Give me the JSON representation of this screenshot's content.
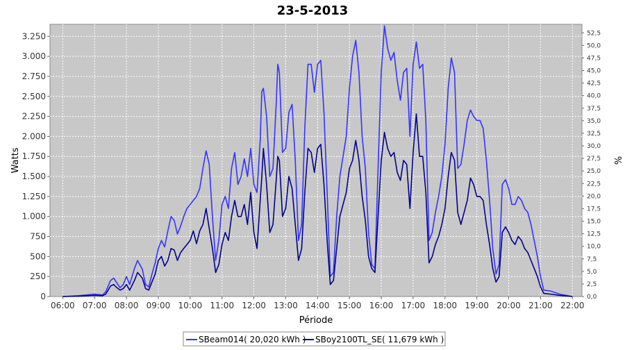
{
  "chart_data": {
    "type": "line",
    "title": "23-5-2013",
    "xlabel": "Période",
    "ylabel": "Watts",
    "y2label": "%",
    "x_range_hours": [
      5.6,
      22.3
    ],
    "ylim": [
      0,
      3400
    ],
    "y2lim": [
      0,
      54.2
    ],
    "grid": true,
    "legend_position": "bottom",
    "x_tick_labels": [
      "06:00",
      "07:00",
      "08:00",
      "09:00",
      "10:00",
      "11:00",
      "12:00",
      "13:00",
      "14:00",
      "15:00",
      "16:00",
      "17:00",
      "18:00",
      "19:00",
      "20:00",
      "21:00",
      "22:00"
    ],
    "y_tick_labels": [
      "0",
      "250",
      "500",
      "750",
      "1.000",
      "1.250",
      "1.500",
      "1.750",
      "2.000",
      "2.250",
      "2.500",
      "2.750",
      "3.000",
      "3.250"
    ],
    "y_tick_values": [
      0,
      250,
      500,
      750,
      1000,
      1250,
      1500,
      1750,
      2000,
      2250,
      2500,
      2750,
      3000,
      3250
    ],
    "y2_tick_labels": [
      "0,0",
      "2,5",
      "5,0",
      "7,5",
      "10,0",
      "12,5",
      "15,0",
      "17,5",
      "20,0",
      "22,5",
      "25,0",
      "27,5",
      "30,0",
      "32,5",
      "35,0",
      "37,5",
      "40,0",
      "42,5",
      "45,0",
      "47,5",
      "50,0",
      "52,5"
    ],
    "y2_tick_values": [
      0,
      2.5,
      5,
      7.5,
      10,
      12.5,
      15,
      17.5,
      20,
      22.5,
      25,
      27.5,
      30,
      32.5,
      35,
      37.5,
      40,
      42.5,
      45,
      47.5,
      50,
      52.5
    ],
    "series": [
      {
        "name": "SBeam014( 20,020 kWh )",
        "color": "#3333ff",
        "points": [
          [
            6.0,
            0
          ],
          [
            6.5,
            10
          ],
          [
            7.0,
            30
          ],
          [
            7.25,
            20
          ],
          [
            7.35,
            60
          ],
          [
            7.5,
            200
          ],
          [
            7.6,
            230
          ],
          [
            7.7,
            170
          ],
          [
            7.8,
            110
          ],
          [
            7.9,
            150
          ],
          [
            8.0,
            250
          ],
          [
            8.1,
            150
          ],
          [
            8.25,
            350
          ],
          [
            8.35,
            450
          ],
          [
            8.5,
            340
          ],
          [
            8.6,
            150
          ],
          [
            8.7,
            120
          ],
          [
            8.8,
            280
          ],
          [
            8.9,
            420
          ],
          [
            9.0,
            600
          ],
          [
            9.1,
            700
          ],
          [
            9.2,
            620
          ],
          [
            9.3,
            820
          ],
          [
            9.4,
            1000
          ],
          [
            9.5,
            950
          ],
          [
            9.6,
            780
          ],
          [
            9.7,
            880
          ],
          [
            9.8,
            1000
          ],
          [
            9.9,
            1100
          ],
          [
            10.0,
            1150
          ],
          [
            10.1,
            1200
          ],
          [
            10.2,
            1250
          ],
          [
            10.3,
            1350
          ],
          [
            10.4,
            1600
          ],
          [
            10.5,
            1820
          ],
          [
            10.6,
            1650
          ],
          [
            10.7,
            1000
          ],
          [
            10.8,
            450
          ],
          [
            10.9,
            700
          ],
          [
            11.0,
            1150
          ],
          [
            11.1,
            1250
          ],
          [
            11.2,
            1100
          ],
          [
            11.3,
            1600
          ],
          [
            11.4,
            1800
          ],
          [
            11.5,
            1400
          ],
          [
            11.6,
            1500
          ],
          [
            11.7,
            1720
          ],
          [
            11.8,
            1500
          ],
          [
            11.9,
            1850
          ],
          [
            12.0,
            1400
          ],
          [
            12.1,
            1300
          ],
          [
            12.2,
            1950
          ],
          [
            12.25,
            2560
          ],
          [
            12.3,
            2600
          ],
          [
            12.4,
            2250
          ],
          [
            12.5,
            1500
          ],
          [
            12.6,
            1600
          ],
          [
            12.7,
            2400
          ],
          [
            12.75,
            2900
          ],
          [
            12.8,
            2800
          ],
          [
            12.9,
            1800
          ],
          [
            13.0,
            1850
          ],
          [
            13.1,
            2300
          ],
          [
            13.2,
            2400
          ],
          [
            13.3,
            1700
          ],
          [
            13.4,
            700
          ],
          [
            13.5,
            900
          ],
          [
            13.6,
            2100
          ],
          [
            13.7,
            2900
          ],
          [
            13.8,
            2900
          ],
          [
            13.9,
            2550
          ],
          [
            14.0,
            2900
          ],
          [
            14.1,
            2950
          ],
          [
            14.2,
            2300
          ],
          [
            14.3,
            1300
          ],
          [
            14.4,
            250
          ],
          [
            14.5,
            300
          ],
          [
            14.6,
            1000
          ],
          [
            14.7,
            1500
          ],
          [
            14.8,
            1750
          ],
          [
            14.9,
            2000
          ],
          [
            15.0,
            2600
          ],
          [
            15.1,
            3000
          ],
          [
            15.2,
            3200
          ],
          [
            15.3,
            2800
          ],
          [
            15.4,
            2000
          ],
          [
            15.5,
            1600
          ],
          [
            15.6,
            800
          ],
          [
            15.7,
            400
          ],
          [
            15.8,
            350
          ],
          [
            15.9,
            1600
          ],
          [
            16.0,
            2800
          ],
          [
            16.1,
            3380
          ],
          [
            16.2,
            3100
          ],
          [
            16.3,
            2950
          ],
          [
            16.4,
            3050
          ],
          [
            16.5,
            2700
          ],
          [
            16.6,
            2450
          ],
          [
            16.7,
            2800
          ],
          [
            16.8,
            2850
          ],
          [
            16.9,
            2000
          ],
          [
            17.0,
            2900
          ],
          [
            17.1,
            3180
          ],
          [
            17.2,
            2850
          ],
          [
            17.3,
            2900
          ],
          [
            17.4,
            2200
          ],
          [
            17.5,
            700
          ],
          [
            17.6,
            800
          ],
          [
            17.7,
            1050
          ],
          [
            17.8,
            1250
          ],
          [
            17.9,
            1500
          ],
          [
            18.0,
            1900
          ],
          [
            18.1,
            2600
          ],
          [
            18.2,
            2980
          ],
          [
            18.3,
            2800
          ],
          [
            18.4,
            1600
          ],
          [
            18.5,
            1650
          ],
          [
            18.6,
            1900
          ],
          [
            18.7,
            2200
          ],
          [
            18.8,
            2330
          ],
          [
            18.9,
            2250
          ],
          [
            19.0,
            2200
          ],
          [
            19.1,
            2200
          ],
          [
            19.2,
            2100
          ],
          [
            19.3,
            1700
          ],
          [
            19.4,
            1200
          ],
          [
            19.5,
            600
          ],
          [
            19.6,
            280
          ],
          [
            19.7,
            400
          ],
          [
            19.8,
            1400
          ],
          [
            19.9,
            1460
          ],
          [
            20.0,
            1350
          ],
          [
            20.1,
            1150
          ],
          [
            20.2,
            1150
          ],
          [
            20.3,
            1250
          ],
          [
            20.4,
            1200
          ],
          [
            20.5,
            1100
          ],
          [
            20.6,
            1050
          ],
          [
            20.7,
            900
          ],
          [
            20.8,
            700
          ],
          [
            20.9,
            500
          ],
          [
            21.0,
            250
          ],
          [
            21.1,
            80
          ],
          [
            21.3,
            70
          ],
          [
            21.6,
            30
          ],
          [
            22.0,
            0
          ]
        ]
      },
      {
        "name": "SBoy2100TL_SE( 11,679 kWh )",
        "color": "#00008b",
        "points": [
          [
            6.0,
            0
          ],
          [
            6.5,
            5
          ],
          [
            7.0,
            15
          ],
          [
            7.25,
            10
          ],
          [
            7.35,
            30
          ],
          [
            7.5,
            130
          ],
          [
            7.6,
            150
          ],
          [
            7.7,
            110
          ],
          [
            7.8,
            80
          ],
          [
            7.9,
            100
          ],
          [
            8.0,
            150
          ],
          [
            8.1,
            80
          ],
          [
            8.25,
            200
          ],
          [
            8.35,
            300
          ],
          [
            8.5,
            230
          ],
          [
            8.6,
            100
          ],
          [
            8.7,
            80
          ],
          [
            8.8,
            180
          ],
          [
            8.9,
            280
          ],
          [
            9.0,
            450
          ],
          [
            9.1,
            500
          ],
          [
            9.2,
            380
          ],
          [
            9.3,
            450
          ],
          [
            9.4,
            600
          ],
          [
            9.5,
            580
          ],
          [
            9.6,
            450
          ],
          [
            9.7,
            550
          ],
          [
            9.8,
            600
          ],
          [
            9.9,
            650
          ],
          [
            10.0,
            700
          ],
          [
            10.1,
            820
          ],
          [
            10.2,
            660
          ],
          [
            10.3,
            820
          ],
          [
            10.4,
            900
          ],
          [
            10.5,
            1100
          ],
          [
            10.6,
            850
          ],
          [
            10.7,
            600
          ],
          [
            10.8,
            300
          ],
          [
            10.9,
            400
          ],
          [
            11.0,
            650
          ],
          [
            11.1,
            800
          ],
          [
            11.2,
            700
          ],
          [
            11.3,
            1000
          ],
          [
            11.4,
            1200
          ],
          [
            11.5,
            1000
          ],
          [
            11.6,
            1000
          ],
          [
            11.7,
            1150
          ],
          [
            11.8,
            900
          ],
          [
            11.9,
            1300
          ],
          [
            12.0,
            800
          ],
          [
            12.1,
            600
          ],
          [
            12.2,
            1200
          ],
          [
            12.25,
            1500
          ],
          [
            12.3,
            1850
          ],
          [
            12.4,
            1400
          ],
          [
            12.5,
            800
          ],
          [
            12.6,
            900
          ],
          [
            12.7,
            1450
          ],
          [
            12.75,
            1750
          ],
          [
            12.8,
            1700
          ],
          [
            12.9,
            1000
          ],
          [
            13.0,
            1100
          ],
          [
            13.1,
            1500
          ],
          [
            13.2,
            1350
          ],
          [
            13.3,
            900
          ],
          [
            13.4,
            450
          ],
          [
            13.5,
            600
          ],
          [
            13.6,
            1300
          ],
          [
            13.7,
            1850
          ],
          [
            13.8,
            1800
          ],
          [
            13.9,
            1550
          ],
          [
            14.0,
            1850
          ],
          [
            14.1,
            1900
          ],
          [
            14.2,
            1400
          ],
          [
            14.3,
            700
          ],
          [
            14.4,
            150
          ],
          [
            14.5,
            200
          ],
          [
            14.6,
            600
          ],
          [
            14.7,
            1000
          ],
          [
            14.8,
            1150
          ],
          [
            14.9,
            1300
          ],
          [
            15.0,
            1600
          ],
          [
            15.1,
            1700
          ],
          [
            15.2,
            1950
          ],
          [
            15.3,
            1700
          ],
          [
            15.4,
            1250
          ],
          [
            15.5,
            950
          ],
          [
            15.6,
            500
          ],
          [
            15.7,
            350
          ],
          [
            15.8,
            300
          ],
          [
            15.9,
            1000
          ],
          [
            16.0,
            1700
          ],
          [
            16.1,
            2050
          ],
          [
            16.2,
            1850
          ],
          [
            16.3,
            1750
          ],
          [
            16.4,
            1800
          ],
          [
            16.5,
            1550
          ],
          [
            16.6,
            1450
          ],
          [
            16.7,
            1700
          ],
          [
            16.8,
            1650
          ],
          [
            16.9,
            1100
          ],
          [
            17.0,
            1800
          ],
          [
            17.1,
            2280
          ],
          [
            17.2,
            1750
          ],
          [
            17.3,
            1750
          ],
          [
            17.4,
            1300
          ],
          [
            17.5,
            420
          ],
          [
            17.6,
            500
          ],
          [
            17.7,
            650
          ],
          [
            17.8,
            750
          ],
          [
            17.9,
            900
          ],
          [
            18.0,
            1100
          ],
          [
            18.1,
            1500
          ],
          [
            18.2,
            1800
          ],
          [
            18.3,
            1700
          ],
          [
            18.4,
            1050
          ],
          [
            18.5,
            900
          ],
          [
            18.6,
            1050
          ],
          [
            18.7,
            1200
          ],
          [
            18.8,
            1480
          ],
          [
            18.9,
            1400
          ],
          [
            19.0,
            1250
          ],
          [
            19.1,
            1250
          ],
          [
            19.2,
            1200
          ],
          [
            19.3,
            900
          ],
          [
            19.4,
            650
          ],
          [
            19.5,
            350
          ],
          [
            19.6,
            180
          ],
          [
            19.7,
            250
          ],
          [
            19.8,
            800
          ],
          [
            19.9,
            870
          ],
          [
            20.0,
            800
          ],
          [
            20.1,
            700
          ],
          [
            20.2,
            650
          ],
          [
            20.3,
            750
          ],
          [
            20.4,
            700
          ],
          [
            20.5,
            600
          ],
          [
            20.6,
            550
          ],
          [
            20.7,
            450
          ],
          [
            20.8,
            350
          ],
          [
            20.9,
            250
          ],
          [
            21.0,
            120
          ],
          [
            21.1,
            40
          ],
          [
            21.3,
            30
          ],
          [
            21.6,
            15
          ],
          [
            22.0,
            0
          ]
        ]
      }
    ]
  }
}
